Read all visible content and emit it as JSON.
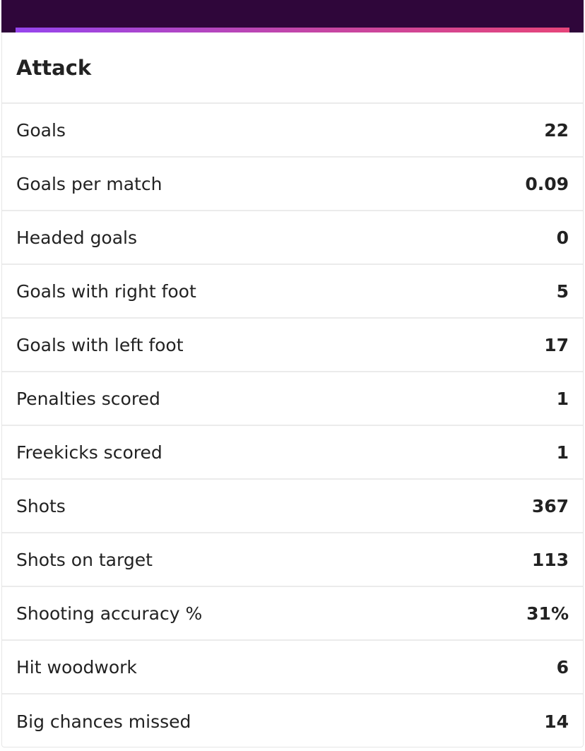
{
  "section": {
    "title": "Attack"
  },
  "colors": {
    "header_bg": "#2f063a",
    "gradient_start": "#9645ee",
    "gradient_end": "#e6457a"
  },
  "stats": [
    {
      "label": "Goals",
      "value": "22"
    },
    {
      "label": "Goals per match",
      "value": "0.09"
    },
    {
      "label": "Headed goals",
      "value": "0"
    },
    {
      "label": "Goals with right foot",
      "value": "5"
    },
    {
      "label": "Goals with left foot",
      "value": "17"
    },
    {
      "label": "Penalties scored",
      "value": "1"
    },
    {
      "label": "Freekicks scored",
      "value": "1"
    },
    {
      "label": "Shots",
      "value": "367"
    },
    {
      "label": "Shots on target",
      "value": "113"
    },
    {
      "label": "Shooting accuracy %",
      "value": "31%"
    },
    {
      "label": "Hit woodwork",
      "value": "6"
    },
    {
      "label": "Big chances missed",
      "value": "14"
    }
  ]
}
